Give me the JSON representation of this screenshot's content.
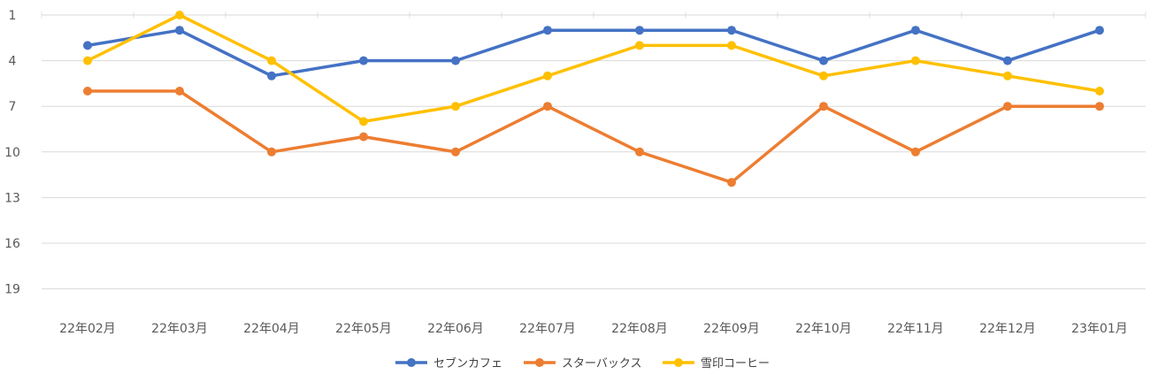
{
  "chart_data": {
    "type": "line",
    "title": "",
    "xlabel": "",
    "ylabel": "",
    "y_reversed": true,
    "ylim": [
      1,
      21
    ],
    "y_ticks": [
      1,
      4,
      7,
      10,
      13,
      16,
      19
    ],
    "grid": true,
    "legend_position": "bottom",
    "categories": [
      "22年02月",
      "22年03月",
      "22年04月",
      "22年05月",
      "22年06月",
      "22年07月",
      "22年08月",
      "22年09月",
      "22年10月",
      "22年11月",
      "22年12月",
      "23年01月"
    ],
    "series": [
      {
        "name": "セブンカフェ",
        "color": "#4472C4",
        "values": [
          3,
          2,
          5,
          4,
          4,
          2,
          2,
          2,
          4,
          2,
          4,
          2
        ]
      },
      {
        "name": "スターバックス",
        "color": "#ED7D31",
        "values": [
          6,
          6,
          10,
          9,
          10,
          7,
          10,
          12,
          7,
          10,
          7,
          7
        ]
      },
      {
        "name": "雪印コーヒー",
        "color": "#FFC000",
        "values": [
          4,
          1,
          4,
          8,
          7,
          5,
          3,
          3,
          5,
          4,
          5,
          6
        ]
      }
    ]
  }
}
